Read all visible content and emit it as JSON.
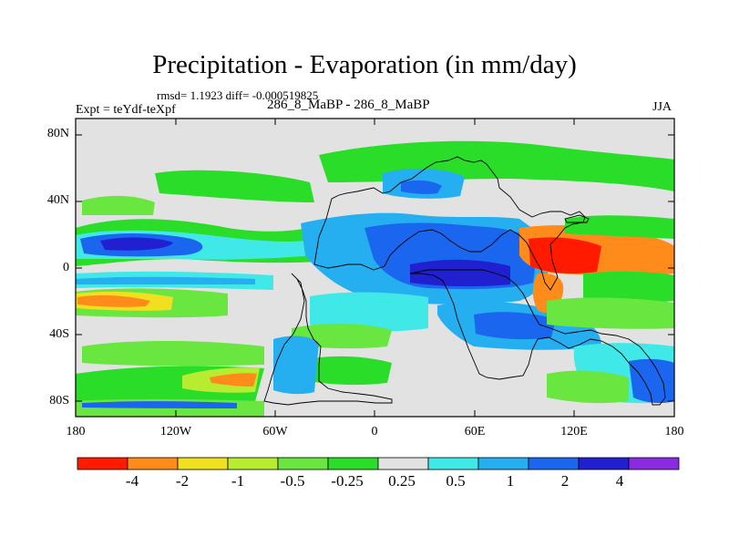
{
  "title": "Precipitation - Evaporation (in mm/day)",
  "stats": "rmsd= 1.1923 diff= -0.000519825",
  "experiment": "Expt = teYdf-teXpf",
  "cases": "286_8_MaBP - 286_8_MaBP",
  "season": "JJA",
  "map": {
    "projection": "cylindrical-equidistant",
    "lon_range": [
      -180,
      180
    ],
    "lat_range": [
      -90,
      90
    ],
    "lat_labels": [
      "80N",
      "40N",
      "0",
      "40S",
      "80S"
    ],
    "lon_labels": [
      "180",
      "120W",
      "60W",
      "0",
      "60E",
      "120E",
      "180"
    ],
    "land_color": "#e0e0e0"
  },
  "colorbar": {
    "levels": [
      "-4",
      "-2",
      "-1",
      "-0.5",
      "-0.25",
      "0.25",
      "0.5",
      "1",
      "2",
      "4"
    ],
    "colors": [
      "#ff1a00",
      "#ff8c1a",
      "#f0e020",
      "#b8ec30",
      "#6ae640",
      "#29dd29",
      "#e2e2e2",
      "#40e8e8",
      "#25aef0",
      "#1a66ee",
      "#2020d0",
      "#8a2be2"
    ]
  }
}
